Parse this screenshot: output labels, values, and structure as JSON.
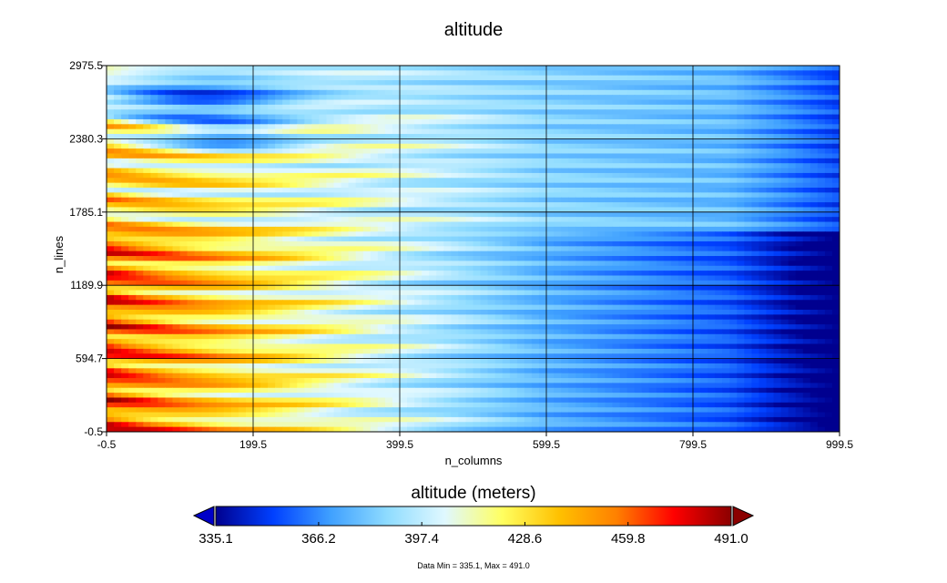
{
  "chart_data": {
    "type": "heatmap",
    "title": "altitude",
    "xlabel": "n_columns",
    "ylabel": "n_lines",
    "x_ticks": [
      "-0.5",
      "199.5",
      "399.5",
      "599.5",
      "799.5",
      "999.5"
    ],
    "y_ticks": [
      "-0.5",
      "594.7",
      "1189.9",
      "1785.1",
      "2380.3",
      "2975.5"
    ],
    "xlim": [
      -0.5,
      999.5
    ],
    "ylim": [
      -0.5,
      2975.5
    ],
    "grid": true,
    "colorbar": {
      "title": "altitude (meters)",
      "min": 335.1,
      "max": 491.0,
      "tick_labels": [
        "335.1",
        "366.2",
        "397.4",
        "428.6",
        "459.8",
        "491.0"
      ],
      "stops": [
        "#00008f",
        "#0040ff",
        "#3fa0ff",
        "#8fdcff",
        "#e0f8ff",
        "#ffff60",
        "#ffc000",
        "#ff8000",
        "#ff0000",
        "#8b0000"
      ],
      "extend_low_color": "#0000c8",
      "extend_high_color": "#8b0000"
    },
    "footnote": "Data Min = 335.1, Max = 491.0"
  }
}
